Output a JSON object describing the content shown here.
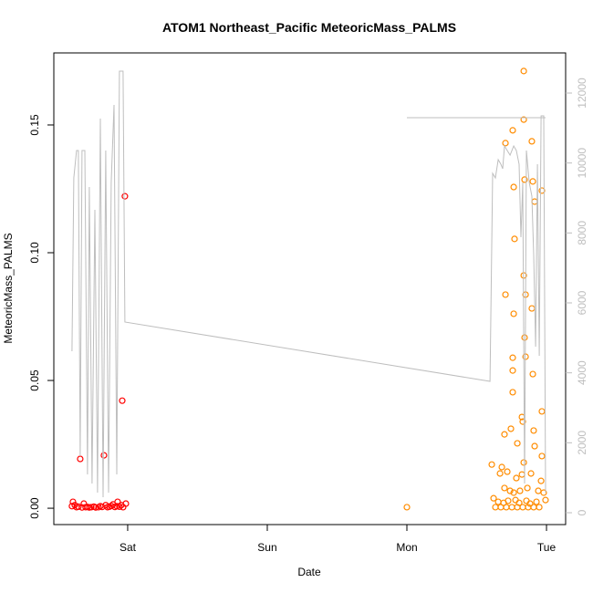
{
  "chart_data": {
    "type": "scatter",
    "title": "ATOM1 Northeast_Pacific MeteoricMass_PALMS",
    "x_label": "Date",
    "y_label": "MeteoricMass_PALMS",
    "xlim": [
      -0.529,
      3.137
    ],
    "xticks": [
      {
        "value": 0,
        "label": "Sat"
      },
      {
        "value": 1,
        "label": "Sun"
      },
      {
        "value": 2,
        "label": "Mon"
      },
      {
        "value": 3,
        "label": "Tue"
      }
    ],
    "ylim": [
      -0.0064,
      0.1782
    ],
    "yticks": [
      {
        "value": 0,
        "label": "0.00"
      },
      0.05,
      {
        "value": 0.1,
        "label": "0.10"
      },
      0.15
    ],
    "y2lim": [
      -339,
      13148
    ],
    "y2ticks": [
      0,
      2000,
      4000,
      6000,
      8000,
      10000,
      12000
    ],
    "y2_color": "#bebebe",
    "series": [
      {
        "color": "#ff0000",
        "x": [
          -0.399,
          -0.392,
          -0.379,
          -0.366,
          -0.353,
          -0.34,
          -0.327,
          -0.314,
          -0.301,
          -0.288,
          -0.275,
          -0.261,
          -0.242,
          -0.229,
          -0.209,
          -0.196,
          -0.183,
          -0.17,
          -0.157,
          -0.144,
          -0.131,
          -0.118,
          -0.105,
          -0.092,
          -0.078,
          -0.072,
          -0.059,
          -0.046,
          -0.039,
          -0.033,
          -0.02,
          -0.013
        ],
        "values": [
          0.0008,
          0.0025,
          0.0012,
          0.0004,
          0.0006,
          0.0193,
          0.0003,
          0.0018,
          0.0004,
          0.0005,
          0.0003,
          0.0004,
          0.0006,
          0.0003,
          0.0004,
          0.0008,
          0.0005,
          0.0207,
          0.0012,
          0.0004,
          0.0006,
          0.0009,
          0.0015,
          0.0005,
          0.0008,
          0.0025,
          0.0006,
          0.0012,
          0.0421,
          0.0004,
          0.1221,
          0.0018
        ]
      },
      {
        "color": "#ff8c00",
        "x": [
          2.0,
          2.837,
          2.837,
          2.758,
          2.706,
          2.895,
          2.843,
          2.902,
          2.765,
          2.967,
          2.915,
          2.771,
          2.837,
          2.706,
          2.85,
          2.895,
          2.765,
          2.758,
          2.843,
          2.758,
          2.85,
          2.902,
          2.758,
          2.967,
          2.824,
          2.908,
          2.83,
          2.745,
          2.699,
          2.791,
          2.915,
          2.967,
          2.837,
          2.608,
          2.68,
          2.719,
          2.889,
          2.667,
          2.784,
          2.824,
          2.961,
          2.699,
          2.739,
          2.765,
          2.81,
          2.863,
          2.941,
          2.98,
          2.621,
          2.654,
          2.693,
          2.725,
          2.778,
          2.804,
          2.856,
          2.882,
          2.928,
          2.993,
          2.634,
          2.673,
          2.712,
          2.752,
          2.791,
          2.83,
          2.869,
          2.908,
          2.948
        ],
        "values": [
          0.0004,
          0.1711,
          0.1521,
          0.1479,
          0.1429,
          0.1436,
          0.1286,
          0.1279,
          0.1257,
          0.1243,
          0.12,
          0.1054,
          0.0911,
          0.0836,
          0.0836,
          0.0782,
          0.0761,
          0.0589,
          0.0668,
          0.0539,
          0.0593,
          0.0525,
          0.0454,
          0.0379,
          0.0357,
          0.0304,
          0.0339,
          0.0311,
          0.0289,
          0.0254,
          0.0243,
          0.0204,
          0.0179,
          0.0171,
          0.0161,
          0.0143,
          0.0136,
          0.0136,
          0.0118,
          0.0132,
          0.0107,
          0.0079,
          0.0068,
          0.0061,
          0.0068,
          0.0079,
          0.0068,
          0.0061,
          0.0039,
          0.0025,
          0.0021,
          0.0029,
          0.0032,
          0.0021,
          0.0029,
          0.0018,
          0.0025,
          0.0032,
          0.0004,
          0.0004,
          0.0004,
          0.0004,
          0.0004,
          0.0004,
          0.0004,
          0.0004,
          0.0004
        ]
      },
      {
        "type": "line",
        "axis": "y2",
        "color": "#bebebe",
        "x": [
          -0.399,
          -0.386,
          -0.366,
          -0.353,
          -0.34,
          -0.327,
          -0.307,
          -0.288,
          -0.275,
          -0.255,
          -0.235,
          -0.216,
          -0.196,
          -0.176,
          -0.157,
          -0.137,
          -0.118,
          -0.098,
          -0.078,
          -0.059,
          -0.033,
          -0.02,
          2.595,
          2.614,
          2.634,
          2.654,
          2.673,
          2.686,
          2.699,
          2.719,
          2.739,
          2.765,
          2.784,
          2.804,
          2.817,
          2.83,
          2.843,
          2.856,
          2.876,
          2.895,
          2.908,
          2.922,
          2.935,
          2.948,
          2.961,
          2.98,
          2.993,
          null,
          2.0,
          2.993
        ],
        "values": [
          4618,
          9575,
          10357,
          10357,
          1618,
          10357,
          10357,
          1096,
          9314,
          835,
          8662,
          574,
          11271,
          444,
          10357,
          574,
          9444,
          11662,
          1096,
          12627,
          12627,
          5453,
          3757,
          9705,
          9575,
          10097,
          9966,
          9836,
          10488,
          10357,
          10227,
          10488,
          10357,
          9966,
          7879,
          9444,
          835,
          10357,
          9444,
          9053,
          7357,
          4748,
          9966,
          4487,
          11349,
          11349,
          574,
          null,
          11297,
          11297
        ]
      }
    ]
  }
}
